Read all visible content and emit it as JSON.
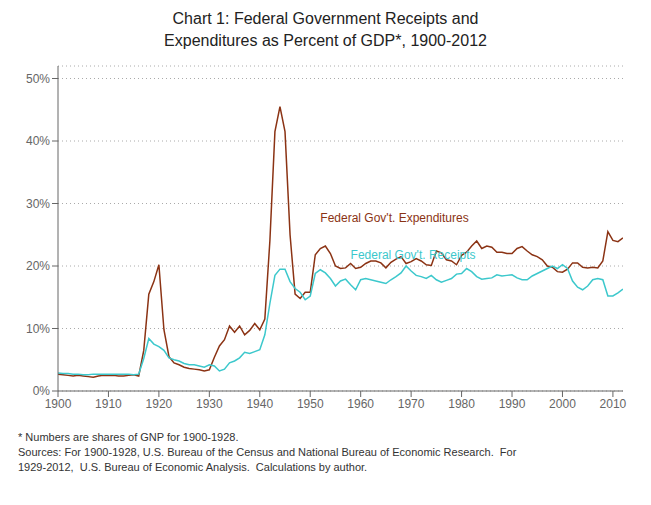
{
  "chart_data": {
    "type": "line",
    "title": "Chart 1: Federal Government Receipts and\nExpenditures as Percent of GDP*, 1900-2012",
    "footnote": "* Numbers are shares of GNP for 1900-1928.\nSources: For 1900-1928, U.S. Bureau of the Census and National Bureau of Economic Research.  For\n1929-2012,  U.S. Bureau of Economic Analysis.  Calculations by author.",
    "x": [
      1900,
      1901,
      1902,
      1903,
      1904,
      1905,
      1906,
      1907,
      1908,
      1909,
      1910,
      1911,
      1912,
      1913,
      1914,
      1915,
      1916,
      1917,
      1918,
      1919,
      1920,
      1921,
      1922,
      1923,
      1924,
      1925,
      1926,
      1927,
      1928,
      1929,
      1930,
      1931,
      1932,
      1933,
      1934,
      1935,
      1936,
      1937,
      1938,
      1939,
      1940,
      1941,
      1942,
      1943,
      1944,
      1945,
      1946,
      1947,
      1948,
      1949,
      1950,
      1951,
      1952,
      1953,
      1954,
      1955,
      1956,
      1957,
      1958,
      1959,
      1960,
      1961,
      1962,
      1963,
      1964,
      1965,
      1966,
      1967,
      1968,
      1969,
      1970,
      1971,
      1972,
      1973,
      1974,
      1975,
      1976,
      1977,
      1978,
      1979,
      1980,
      1981,
      1982,
      1983,
      1984,
      1985,
      1986,
      1987,
      1988,
      1989,
      1990,
      1991,
      1992,
      1993,
      1994,
      1995,
      1996,
      1997,
      1998,
      1999,
      2000,
      2001,
      2002,
      2003,
      2004,
      2005,
      2006,
      2007,
      2008,
      2009,
      2010,
      2011,
      2012
    ],
    "series": [
      {
        "color": "#8B3314",
        "values": [
          0.027,
          0.026,
          0.025,
          0.024,
          0.025,
          0.024,
          0.023,
          0.022,
          0.024,
          0.025,
          0.025,
          0.025,
          0.024,
          0.024,
          0.025,
          0.026,
          0.024,
          0.065,
          0.155,
          0.175,
          0.202,
          0.098,
          0.055,
          0.045,
          0.042,
          0.038,
          0.036,
          0.035,
          0.034,
          0.032,
          0.034,
          0.054,
          0.072,
          0.082,
          0.104,
          0.094,
          0.104,
          0.09,
          0.097,
          0.108,
          0.098,
          0.115,
          0.24,
          0.415,
          0.455,
          0.415,
          0.25,
          0.155,
          0.148,
          0.158,
          0.158,
          0.218,
          0.228,
          0.232,
          0.22,
          0.2,
          0.196,
          0.197,
          0.204,
          0.196,
          0.198,
          0.204,
          0.208,
          0.208,
          0.205,
          0.197,
          0.206,
          0.211,
          0.215,
          0.204,
          0.207,
          0.212,
          0.208,
          0.202,
          0.201,
          0.224,
          0.221,
          0.21,
          0.208,
          0.202,
          0.217,
          0.222,
          0.232,
          0.24,
          0.228,
          0.232,
          0.23,
          0.222,
          0.222,
          0.22,
          0.22,
          0.228,
          0.231,
          0.224,
          0.218,
          0.215,
          0.21,
          0.2,
          0.198,
          0.191,
          0.19,
          0.195,
          0.205,
          0.205,
          0.198,
          0.197,
          0.198,
          0.197,
          0.208,
          0.255,
          0.241,
          0.239,
          0.245
        ]
      },
      {
        "color": "#3CC8CC",
        "values": [
          0.029,
          0.028,
          0.028,
          0.027,
          0.027,
          0.026,
          0.026,
          0.027,
          0.027,
          0.027,
          0.027,
          0.027,
          0.027,
          0.027,
          0.027,
          0.026,
          0.027,
          0.052,
          0.084,
          0.075,
          0.071,
          0.065,
          0.053,
          0.05,
          0.048,
          0.044,
          0.042,
          0.042,
          0.04,
          0.038,
          0.042,
          0.04,
          0.032,
          0.035,
          0.045,
          0.048,
          0.053,
          0.062,
          0.06,
          0.063,
          0.066,
          0.09,
          0.14,
          0.185,
          0.195,
          0.195,
          0.175,
          0.164,
          0.158,
          0.146,
          0.152,
          0.188,
          0.194,
          0.189,
          0.18,
          0.168,
          0.176,
          0.179,
          0.17,
          0.162,
          0.178,
          0.18,
          0.178,
          0.176,
          0.174,
          0.172,
          0.178,
          0.183,
          0.189,
          0.2,
          0.192,
          0.185,
          0.183,
          0.18,
          0.185,
          0.178,
          0.174,
          0.177,
          0.18,
          0.187,
          0.188,
          0.196,
          0.191,
          0.183,
          0.179,
          0.18,
          0.181,
          0.186,
          0.184,
          0.185,
          0.186,
          0.181,
          0.178,
          0.178,
          0.184,
          0.188,
          0.192,
          0.196,
          0.2,
          0.196,
          0.202,
          0.196,
          0.176,
          0.166,
          0.162,
          0.168,
          0.178,
          0.18,
          0.178,
          0.152,
          0.152,
          0.157,
          0.163
        ]
      }
    ],
    "annotations": [
      {
        "text": "Federal Gov't. Expenditures",
        "x": 1952,
        "y": 0.278,
        "color": "#8B3314"
      },
      {
        "text": "Federal Gov't. Receipts",
        "x": 1958,
        "y": 0.218,
        "color": "#3CC8CC"
      }
    ],
    "xlim": [
      1900,
      2012
    ],
    "xticks": [
      1900,
      1910,
      1920,
      1930,
      1940,
      1950,
      1960,
      1970,
      1980,
      1990,
      2000,
      2010
    ],
    "ylim": [
      0,
      0.52
    ],
    "yticks": [
      {
        "value": 0.0,
        "label": "0%"
      },
      {
        "value": 0.1,
        "label": "10%"
      },
      {
        "value": 0.2,
        "label": "20%"
      },
      {
        "value": 0.3,
        "label": "30%"
      },
      {
        "value": 0.4,
        "label": "40%"
      },
      {
        "value": 0.5,
        "label": "50%"
      }
    ],
    "grid": true
  }
}
